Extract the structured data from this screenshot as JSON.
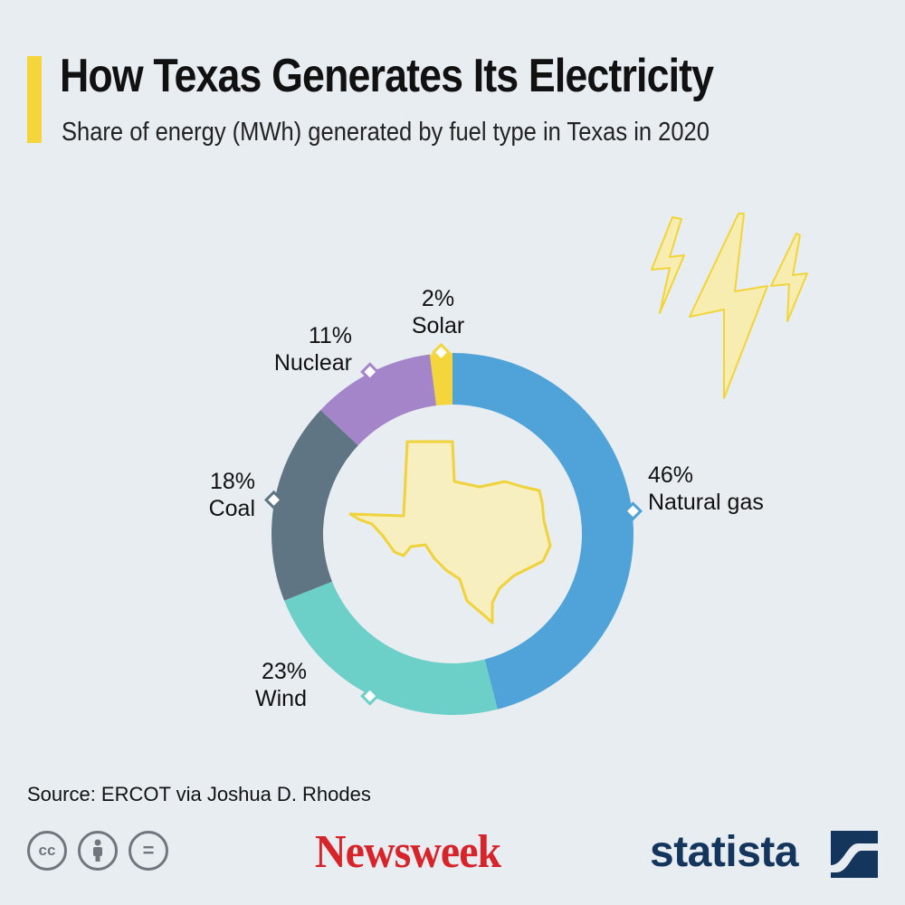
{
  "header": {
    "title": "How Texas Generates Its Electricity",
    "subtitle": "Share of energy (MWh) generated by fuel type in Texas in 2020"
  },
  "chart_data": {
    "type": "pie",
    "variant": "donut",
    "start_angle_deg": 0,
    "direction": "clockwise",
    "series": [
      {
        "name": "Natural gas",
        "value": 46,
        "value_label": "46%",
        "color": "#4fa3d8"
      },
      {
        "name": "Wind",
        "value": 23,
        "value_label": "23%",
        "color": "#6dd0c8"
      },
      {
        "name": "Coal",
        "value": 18,
        "value_label": "18%",
        "color": "#5f7583"
      },
      {
        "name": "Nuclear",
        "value": 11,
        "value_label": "11%",
        "color": "#a585c9"
      },
      {
        "name": "Solar",
        "value": 2,
        "value_label": "2%",
        "color": "#f4d63c"
      }
    ]
  },
  "footer": {
    "source": "Source: ERCOT via Joshua D. Rhodes",
    "license_icons": [
      "cc-icon",
      "by-icon",
      "nd-icon"
    ],
    "cc_labels": [
      "cc",
      "="
    ],
    "brand_newsweek": "Newsweek",
    "brand_statista": "statista"
  },
  "colors": {
    "accent": "#f4d63c",
    "background": "#e8edf2",
    "newsweek_red": "#d7242b",
    "statista_navy": "#15365c",
    "texas_fill": "#f7efc0"
  }
}
